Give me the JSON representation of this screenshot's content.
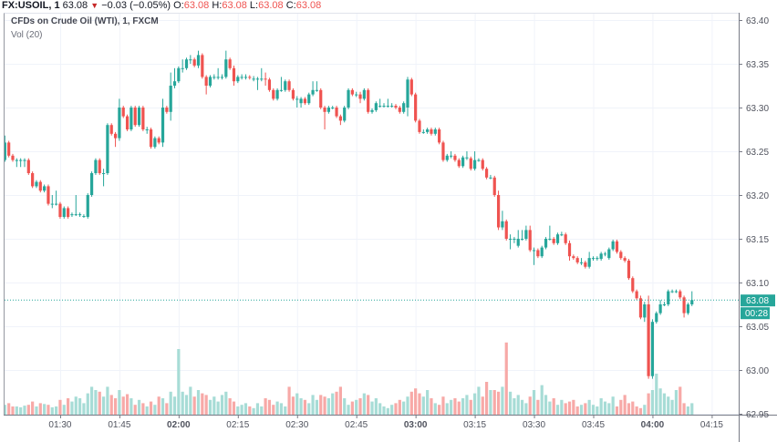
{
  "header": {
    "symbol": "FX:USOIL, 1",
    "last": "63.08",
    "change_arrow": "▼",
    "change": "−0.03 (−0.05%)",
    "o_label": "O:",
    "o": "63.08",
    "h_label": "H:",
    "h": "63.08",
    "l_label": "L:",
    "l": "63.08",
    "c_label": "C:",
    "c": "63.08"
  },
  "legend": {
    "series": "CFDs on Crude Oil (WTI), 1, FXCM",
    "volume": "Vol (20)"
  },
  "colors": {
    "up": "#26a69a",
    "down": "#ef5350",
    "up_vol": "#a7dcd6",
    "down_vol": "#f7a9a7",
    "grid": "#f0f3fa"
  },
  "price_label": {
    "value": "63.08",
    "countdown": "00:28"
  },
  "chart_data": {
    "type": "candlestick",
    "title": "CFDs on Crude Oil (WTI), 1, FXCM",
    "interval_minutes": 1,
    "start_time": "01:16",
    "ohlc_format": "[open, close, high?, low?]",
    "ylim": [
      62.95,
      63.405
    ],
    "y_ticks": [
      "63.40",
      "63.35",
      "63.30",
      "63.25",
      "63.20",
      "63.15",
      "63.10",
      "63.05",
      "63.00",
      "62.95"
    ],
    "x_ticks": [
      {
        "label": "01:30",
        "minute": 15
      },
      {
        "label": "01:45",
        "minute": 30
      },
      {
        "label": "02:00",
        "minute": 45,
        "bold": true
      },
      {
        "label": "02:15",
        "minute": 60
      },
      {
        "label": "02:30",
        "minute": 75
      },
      {
        "label": "02:45",
        "minute": 90
      },
      {
        "label": "03:00",
        "minute": 105,
        "bold": true
      },
      {
        "label": "03:15",
        "minute": 120
      },
      {
        "label": "03:30",
        "minute": 135
      },
      {
        "label": "03:45",
        "minute": 150
      },
      {
        "label": "04:00",
        "minute": 165,
        "bold": true
      },
      {
        "label": "04:15",
        "minute": 180
      }
    ],
    "last_price": 63.08,
    "candles": [
      [
        63.24,
        63.26,
        63.268,
        63.238
      ],
      [
        63.26,
        63.245,
        63.262
      ],
      [
        63.245,
        63.24
      ],
      [
        63.24,
        63.24,
        63.242,
        63.232
      ],
      [
        63.24,
        63.24,
        63.242,
        63.232
      ],
      [
        63.24,
        63.24,
        63.242,
        63.232
      ],
      [
        63.24,
        63.225
      ],
      [
        63.225,
        63.21
      ],
      [
        63.21,
        63.215
      ],
      [
        63.215,
        63.205
      ],
      [
        63.205,
        63.21
      ],
      [
        63.21,
        63.19
      ],
      [
        63.19,
        63.19,
        63.2,
        63.185
      ],
      [
        63.19,
        63.19,
        63.205,
        63.188
      ],
      [
        63.19,
        63.175
      ],
      [
        63.175,
        63.185
      ],
      [
        63.185,
        63.175
      ],
      [
        63.178,
        63.178,
        63.18,
        63.175
      ],
      [
        63.178,
        63.178,
        63.2,
        63.176
      ],
      [
        63.178,
        63.178,
        63.18,
        63.175
      ],
      [
        63.176,
        63.176,
        63.178,
        63.174
      ],
      [
        63.175,
        63.2
      ],
      [
        63.2,
        63.225
      ],
      [
        63.225,
        63.24
      ],
      [
        63.24,
        63.225
      ],
      [
        63.225,
        63.225,
        63.23,
        63.21
      ],
      [
        63.225,
        63.28
      ],
      [
        63.28,
        63.27
      ],
      [
        63.27,
        63.265,
        63.272,
        63.255
      ],
      [
        63.265,
        63.3,
        63.31,
        63.262
      ],
      [
        63.3,
        63.29
      ],
      [
        63.29,
        63.275
      ],
      [
        63.275,
        63.3
      ],
      [
        63.3,
        63.28
      ],
      [
        63.28,
        63.3
      ],
      [
        63.3,
        63.275
      ],
      [
        63.275,
        63.275,
        63.278,
        63.27
      ],
      [
        63.275,
        63.255
      ],
      [
        63.255,
        63.265
      ],
      [
        63.265,
        63.26
      ],
      [
        63.26,
        63.3,
        63.31,
        63.255
      ],
      [
        63.3,
        63.295
      ],
      [
        63.295,
        63.325,
        63.34,
        63.285
      ],
      [
        63.325,
        63.33,
        63.345,
        63.322
      ],
      [
        63.33,
        63.345
      ],
      [
        63.345,
        63.345,
        63.355,
        63.34
      ],
      [
        63.345,
        63.355
      ],
      [
        63.355,
        63.355,
        63.36,
        63.35
      ],
      [
        63.355,
        63.348
      ],
      [
        63.348,
        63.36,
        63.365,
        63.345
      ],
      [
        63.36,
        63.335
      ],
      [
        63.335,
        63.325,
        63.337,
        63.315
      ],
      [
        63.325,
        63.335
      ],
      [
        63.335,
        63.335,
        63.338,
        63.332
      ],
      [
        63.335,
        63.335,
        63.345,
        63.332
      ],
      [
        63.335,
        63.335,
        63.338,
        63.332
      ],
      [
        63.335,
        63.355,
        63.365,
        63.333
      ],
      [
        63.355,
        63.345
      ],
      [
        63.345,
        63.33,
        63.348,
        63.325
      ],
      [
        63.33,
        63.335
      ],
      [
        63.335,
        63.335,
        63.338,
        63.332
      ],
      [
        63.335,
        63.335,
        63.338,
        63.332
      ],
      [
        63.335,
        63.334,
        63.337,
        63.332
      ],
      [
        63.333,
        63.333,
        63.336,
        63.33
      ],
      [
        63.333,
        63.333,
        63.335,
        63.32
      ],
      [
        63.333,
        63.333,
        63.345,
        63.33
      ],
      [
        63.333,
        63.332,
        63.34,
        63.325
      ],
      [
        63.332,
        63.32
      ],
      [
        63.32,
        63.31
      ],
      [
        63.31,
        63.32
      ],
      [
        63.32,
        63.32,
        63.335,
        63.318
      ],
      [
        63.32,
        63.33
      ],
      [
        63.33,
        63.32
      ],
      [
        63.32,
        63.31
      ],
      [
        63.31,
        63.31,
        63.313,
        63.3
      ],
      [
        63.305,
        63.31,
        63.312,
        63.3
      ],
      [
        63.31,
        63.305
      ],
      [
        63.305,
        63.315
      ],
      [
        63.315,
        63.32,
        63.33,
        63.313
      ],
      [
        63.32,
        63.32,
        63.33,
        63.318
      ],
      [
        63.32,
        63.3
      ],
      [
        63.3,
        63.295,
        63.302,
        63.275
      ],
      [
        63.295,
        63.3
      ],
      [
        63.3,
        63.3,
        63.302,
        63.298
      ],
      [
        63.3,
        63.29
      ],
      [
        63.29,
        63.285,
        63.292,
        63.28
      ],
      [
        63.285,
        63.3
      ],
      [
        63.3,
        63.32
      ],
      [
        63.32,
        63.315
      ],
      [
        63.315,
        63.315,
        63.318,
        63.312
      ],
      [
        63.315,
        63.31,
        63.318,
        63.305
      ],
      [
        63.31,
        63.32
      ],
      [
        63.32,
        63.295
      ],
      [
        63.295,
        63.297
      ],
      [
        63.297,
        63.305
      ],
      [
        63.302,
        63.302,
        63.31,
        63.3
      ],
      [
        63.302,
        63.302,
        63.305,
        63.3
      ],
      [
        63.302,
        63.302,
        63.31,
        63.3
      ],
      [
        63.302,
        63.302,
        63.305,
        63.3
      ],
      [
        63.302,
        63.3
      ],
      [
        63.3,
        63.295
      ],
      [
        63.295,
        63.305
      ],
      [
        63.3,
        63.332,
        63.335,
        63.29
      ],
      [
        63.332,
        63.315
      ],
      [
        63.315,
        63.285
      ],
      [
        63.285,
        63.272
      ],
      [
        63.272,
        63.272,
        63.275,
        63.27
      ],
      [
        63.272,
        63.275
      ],
      [
        63.275,
        63.27
      ],
      [
        63.27,
        63.275
      ],
      [
        63.275,
        63.26
      ],
      [
        63.26,
        63.24
      ],
      [
        63.24,
        63.245
      ],
      [
        63.245,
        63.245,
        63.25,
        63.242
      ],
      [
        63.245,
        63.24
      ],
      [
        63.24,
        63.233
      ],
      [
        63.233,
        63.243
      ],
      [
        63.243,
        63.243,
        63.25,
        63.24
      ],
      [
        63.242,
        63.23
      ],
      [
        63.23,
        63.24,
        63.25,
        63.228
      ],
      [
        63.24,
        63.24,
        63.242,
        63.238
      ],
      [
        63.24,
        63.23
      ],
      [
        63.23,
        63.22
      ],
      [
        63.22,
        63.22,
        63.223,
        63.218
      ],
      [
        63.22,
        63.2
      ],
      [
        63.2,
        63.163,
        63.205,
        63.16
      ],
      [
        63.163,
        63.17,
        63.182,
        63.16
      ],
      [
        63.17,
        63.15
      ],
      [
        63.15,
        63.15,
        63.155,
        63.138
      ],
      [
        63.15,
        63.15,
        63.152,
        63.145
      ],
      [
        63.142,
        63.15,
        63.16,
        63.14
      ],
      [
        63.15,
        63.15,
        63.16,
        63.148
      ],
      [
        63.15,
        63.16,
        63.165,
        63.148
      ],
      [
        63.16,
        63.137,
        63.165,
        63.135
      ],
      [
        63.137,
        63.137,
        63.14,
        63.12
      ],
      [
        63.137,
        63.13
      ],
      [
        63.13,
        63.14
      ],
      [
        63.14,
        63.15
      ],
      [
        63.15,
        63.15,
        63.165,
        63.148
      ],
      [
        63.15,
        63.145
      ],
      [
        63.145,
        63.155
      ],
      [
        63.155,
        63.155,
        63.158,
        63.153
      ],
      [
        63.155,
        63.145
      ],
      [
        63.145,
        63.13,
        63.148,
        63.125
      ],
      [
        63.13,
        63.128
      ],
      [
        63.128,
        63.123
      ],
      [
        63.123,
        63.123,
        63.128,
        63.12
      ],
      [
        63.123,
        63.118
      ],
      [
        63.118,
        63.128,
        63.135,
        63.116
      ],
      [
        63.128,
        63.128,
        63.13,
        63.125
      ],
      [
        63.128,
        63.128,
        63.13,
        63.125
      ],
      [
        63.127,
        63.133
      ],
      [
        63.133,
        63.133,
        63.135,
        63.13
      ],
      [
        63.128,
        63.138
      ],
      [
        63.138,
        63.147
      ],
      [
        63.147,
        63.135
      ],
      [
        63.135,
        63.128
      ],
      [
        63.128,
        63.125
      ],
      [
        63.125,
        63.105
      ],
      [
        63.105,
        63.09
      ],
      [
        63.09,
        63.082
      ],
      [
        63.082,
        63.06,
        63.085,
        63.058
      ],
      [
        63.06,
        63.075,
        63.078,
        63.055
      ],
      [
        63.075,
        62.993,
        63.085,
        62.99
      ],
      [
        62.993,
        63.055,
        63.058,
        62.99
      ],
      [
        63.055,
        63.065
      ],
      [
        63.065,
        63.075,
        63.08,
        63.063
      ],
      [
        63.075,
        63.075,
        63.078,
        63.073
      ],
      [
        63.075,
        63.09
      ],
      [
        63.09,
        63.09,
        63.092,
        63.088
      ],
      [
        63.09,
        63.09,
        63.092,
        63.088
      ],
      [
        63.09,
        63.083
      ],
      [
        63.083,
        63.065,
        63.085,
        63.06
      ],
      [
        63.065,
        63.075
      ],
      [
        63.075,
        63.08,
        63.09,
        63.073
      ]
    ],
    "volume": [
      12,
      14,
      10,
      10,
      9,
      11,
      12,
      16,
      10,
      14,
      13,
      12,
      9,
      10,
      18,
      12,
      20,
      16,
      22,
      20,
      14,
      26,
      34,
      30,
      28,
      22,
      34,
      24,
      20,
      30,
      22,
      25,
      20,
      12,
      18,
      14,
      10,
      16,
      12,
      22,
      20,
      14,
      28,
      22,
      80,
      28,
      24,
      34,
      22,
      30,
      26,
      24,
      18,
      22,
      16,
      24,
      28,
      20,
      16,
      10,
      12,
      14,
      10,
      8,
      14,
      10,
      20,
      18,
      12,
      16,
      14,
      10,
      34,
      22,
      26,
      20,
      18,
      14,
      24,
      18,
      24,
      22,
      20,
      26,
      28,
      34,
      20,
      12,
      16,
      18,
      20,
      26,
      24,
      16,
      20,
      14,
      10,
      8,
      12,
      14,
      18,
      16,
      22,
      28,
      32,
      26,
      22,
      30,
      20,
      14,
      12,
      22,
      14,
      18,
      20,
      16,
      20,
      24,
      18,
      26,
      34,
      22,
      40,
      30,
      30,
      28,
      34,
      88,
      28,
      20,
      24,
      18,
      14,
      22,
      30,
      18,
      36,
      24,
      16,
      20,
      12,
      18,
      14,
      16,
      18,
      10,
      12,
      14,
      18,
      12,
      10,
      20,
      16,
      14,
      22,
      10,
      18,
      24,
      14,
      16,
      10,
      8,
      12,
      26,
      30,
      50,
      32,
      26,
      22,
      18,
      30,
      34,
      14,
      10,
      14,
      14,
      16,
      18,
      20,
      6,
      6
    ]
  }
}
